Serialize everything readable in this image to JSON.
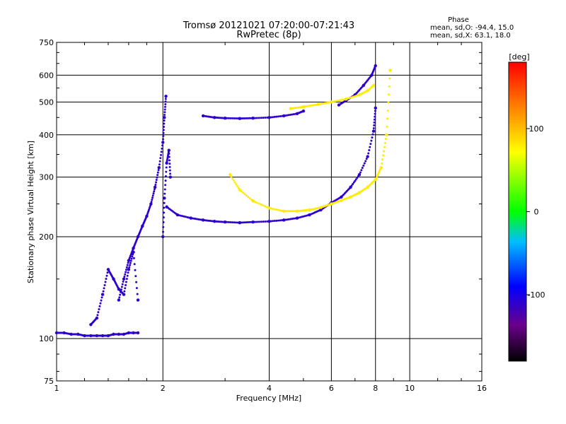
{
  "chart_data": {
    "type": "scatter",
    "title": "Tromsø 20121021 07:20:00-07:21:43",
    "subtitle": "RwPretec (8p)",
    "xlabel": "Frequency [MHz]",
    "ylabel": "Stationary phase Virtual Height [km]",
    "x_scale": "log",
    "y_scale": "log",
    "xlim": [
      1,
      16
    ],
    "ylim": [
      75,
      750
    ],
    "x_ticks": [
      1,
      2,
      4,
      6,
      8,
      10,
      16
    ],
    "x_tick_labels": [
      "1",
      "2",
      "4",
      "6",
      "8",
      "10",
      "16"
    ],
    "y_ticks": [
      75,
      100,
      200,
      300,
      400,
      500,
      600,
      750
    ],
    "y_tick_labels": [
      "75",
      "100",
      "200",
      "300",
      "400",
      "500",
      "600",
      "750"
    ],
    "grid": true,
    "phase_stats": {
      "header": "Phase",
      "line_o": "mean, sd,O: -94.4, 15.0",
      "line_x": "mean, sd,X: 63.1, 18.0"
    },
    "colorbar": {
      "label": "[deg]",
      "range": [
        -180,
        180
      ],
      "ticks": [
        100,
        0,
        -100
      ],
      "tick_labels": [
        "100",
        "0",
        "-100"
      ]
    },
    "series": [
      {
        "mode": "O",
        "phase_deg": -110,
        "segments": [
          {
            "id": "low-e",
            "x": [
              1.0,
              1.05,
              1.1,
              1.15,
              1.2,
              1.25,
              1.3,
              1.35,
              1.4,
              1.45,
              1.5,
              1.55,
              1.6,
              1.65,
              1.7
            ],
            "y": [
              104,
              104,
              103,
              103,
              102,
              102,
              102,
              102,
              102,
              103,
              103,
              103,
              104,
              104,
              104
            ]
          },
          {
            "id": "e-spread",
            "x": [
              1.25,
              1.3,
              1.35,
              1.4,
              1.45,
              1.5,
              1.55,
              1.6,
              1.65,
              1.7
            ],
            "y": [
              110,
              115,
              135,
              160,
              150,
              140,
              135,
              160,
              180,
              130
            ]
          },
          {
            "id": "f1-rise",
            "x": [
              1.5,
              1.55,
              1.6,
              1.65,
              1.7,
              1.75,
              1.8,
              1.85,
              1.9,
              1.95,
              2.0,
              2.02,
              2.04
            ],
            "y": [
              130,
              150,
              170,
              185,
              200,
              215,
              230,
              250,
              280,
              320,
              380,
              450,
              520
            ]
          },
          {
            "id": "f1-cusp-low",
            "x": [
              2.0,
              2.02,
              2.05,
              2.08,
              2.1
            ],
            "y": [
              200,
              260,
              330,
              360,
              300
            ]
          },
          {
            "id": "f2-o",
            "x": [
              2.05,
              2.2,
              2.4,
              2.6,
              2.8,
              3.0,
              3.3,
              3.6,
              4.0,
              4.4,
              4.8,
              5.2,
              5.6,
              6.0,
              6.4,
              6.8,
              7.2,
              7.6,
              7.9,
              8.0
            ],
            "y": [
              245,
              232,
              227,
              224,
              222,
              221,
              220,
              221,
              222,
              224,
              227,
              232,
              240,
              252,
              262,
              280,
              305,
              345,
              410,
              480
            ]
          },
          {
            "id": "f2-o-upper",
            "x": [
              2.6,
              2.8,
              3.0,
              3.3,
              3.6,
              4.0,
              4.4,
              4.8,
              5.0
            ],
            "y": [
              455,
              450,
              448,
              447,
              448,
              450,
              455,
              462,
              470
            ]
          },
          {
            "id": "f2-o-far",
            "x": [
              6.3,
              6.6,
              7.0,
              7.4,
              7.8,
              8.0
            ],
            "y": [
              490,
              505,
              525,
              560,
              600,
              640
            ]
          }
        ]
      },
      {
        "mode": "X",
        "phase_deg": 80,
        "segments": [
          {
            "id": "f2-x",
            "x": [
              3.1,
              3.3,
              3.6,
              4.0,
              4.4,
              4.8,
              5.2,
              5.6,
              6.0,
              6.4,
              6.8,
              7.2,
              7.6,
              8.0,
              8.3,
              8.6,
              8.8
            ],
            "y": [
              305,
              275,
              255,
              243,
              238,
              238,
              240,
              244,
              250,
              256,
              262,
              270,
              280,
              295,
              320,
              400,
              620
            ]
          },
          {
            "id": "f2-x-upper",
            "x": [
              4.6,
              5.0,
              5.5,
              6.0,
              6.6,
              7.2,
              7.6,
              7.9
            ],
            "y": [
              478,
              484,
              492,
              500,
              510,
              525,
              540,
              560
            ]
          }
        ]
      }
    ]
  }
}
